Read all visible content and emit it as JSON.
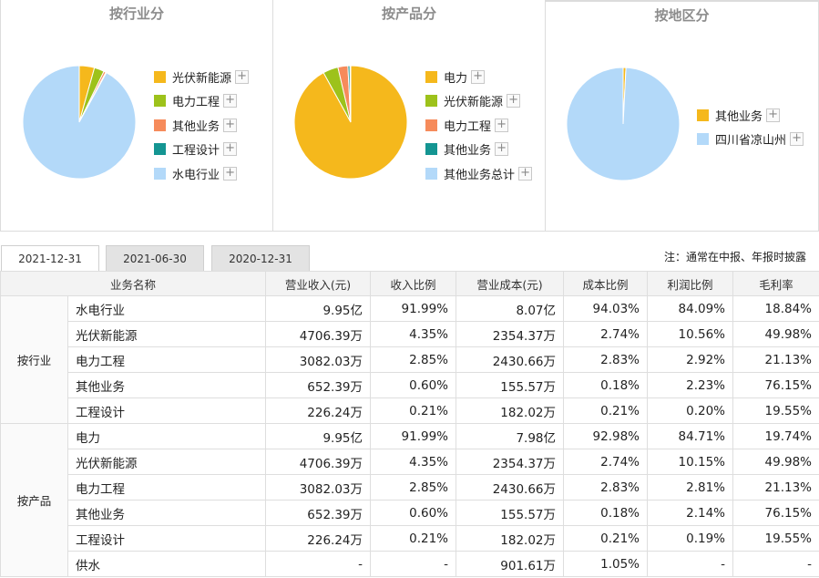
{
  "panels": [
    {
      "title": "按行业分",
      "legend": [
        {
          "label": "光伏新能源",
          "color": "#f5b81c"
        },
        {
          "label": "电力工程",
          "color": "#9dc21b"
        },
        {
          "label": "其他业务",
          "color": "#f68b5b"
        },
        {
          "label": "工程设计",
          "color": "#149592"
        },
        {
          "label": "水电行业",
          "color": "#b3d9f9"
        }
      ],
      "slices": [
        {
          "name": "光伏新能源",
          "value": 4.35,
          "color": "#f5b81c"
        },
        {
          "name": "电力工程",
          "value": 2.85,
          "color": "#9dc21b"
        },
        {
          "name": "其他业务",
          "value": 0.6,
          "color": "#f68b5b"
        },
        {
          "name": "工程设计",
          "value": 0.21,
          "color": "#149592"
        },
        {
          "name": "水电行业",
          "value": 91.99,
          "color": "#b3d9f9"
        }
      ]
    },
    {
      "title": "按产品分",
      "legend": [
        {
          "label": "电力",
          "color": "#f5b81c"
        },
        {
          "label": "光伏新能源",
          "color": "#9dc21b"
        },
        {
          "label": "电力工程",
          "color": "#f68b5b"
        },
        {
          "label": "其他业务",
          "color": "#149592"
        },
        {
          "label": "其他业务总计",
          "color": "#b3d9f9"
        }
      ],
      "slices": [
        {
          "name": "电力",
          "value": 91.99,
          "color": "#f5b81c"
        },
        {
          "name": "光伏新能源",
          "value": 4.35,
          "color": "#9dc21b"
        },
        {
          "name": "电力工程",
          "value": 2.85,
          "color": "#f68b5b"
        },
        {
          "name": "其他业务",
          "value": 0.6,
          "color": "#149592"
        },
        {
          "name": "其他业务总计",
          "value": 0.21,
          "color": "#b3d9f9"
        }
      ]
    },
    {
      "title": "按地区分",
      "legend": [
        {
          "label": "其他业务",
          "color": "#f5b81c"
        },
        {
          "label": "四川省凉山州",
          "color": "#b3d9f9"
        }
      ],
      "slices": [
        {
          "name": "其他业务",
          "value": 0.8,
          "color": "#f5b81c"
        },
        {
          "name": "四川省凉山州",
          "value": 99.2,
          "color": "#b3d9f9"
        }
      ]
    }
  ],
  "tabs": [
    "2021-12-31",
    "2021-06-30",
    "2020-12-31"
  ],
  "active_tab": 0,
  "note": "注：通常在中报、年报时披露",
  "table": {
    "headers": [
      "业务名称",
      "营业收入(元)",
      "收入比例",
      "营业成本(元)",
      "成本比例",
      "利润比例",
      "毛利率"
    ],
    "groups": [
      {
        "label": "按行业",
        "rows": [
          [
            "水电行业",
            "9.95亿",
            "91.99%",
            "8.07亿",
            "94.03%",
            "84.09%",
            "18.84%"
          ],
          [
            "光伏新能源",
            "4706.39万",
            "4.35%",
            "2354.37万",
            "2.74%",
            "10.56%",
            "49.98%"
          ],
          [
            "电力工程",
            "3082.03万",
            "2.85%",
            "2430.66万",
            "2.83%",
            "2.92%",
            "21.13%"
          ],
          [
            "其他业务",
            "652.39万",
            "0.60%",
            "155.57万",
            "0.18%",
            "2.23%",
            "76.15%"
          ],
          [
            "工程设计",
            "226.24万",
            "0.21%",
            "182.02万",
            "0.21%",
            "0.20%",
            "19.55%"
          ]
        ]
      },
      {
        "label": "按产品",
        "rows": [
          [
            "电力",
            "9.95亿",
            "91.99%",
            "7.98亿",
            "92.98%",
            "84.71%",
            "19.74%"
          ],
          [
            "光伏新能源",
            "4706.39万",
            "4.35%",
            "2354.37万",
            "2.74%",
            "10.15%",
            "49.98%"
          ],
          [
            "电力工程",
            "3082.03万",
            "2.85%",
            "2430.66万",
            "2.83%",
            "2.81%",
            "21.13%"
          ],
          [
            "其他业务",
            "652.39万",
            "0.60%",
            "155.57万",
            "0.18%",
            "2.14%",
            "76.15%"
          ],
          [
            "工程设计",
            "226.24万",
            "0.21%",
            "182.02万",
            "0.21%",
            "0.19%",
            "19.55%"
          ],
          [
            "供水",
            "-",
            "-",
            "901.61万",
            "1.05%",
            "-",
            "-"
          ]
        ]
      }
    ]
  }
}
